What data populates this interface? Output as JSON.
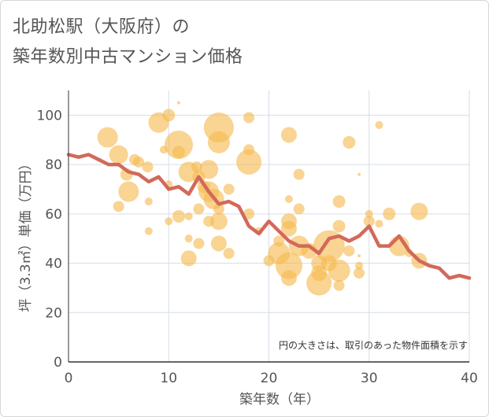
{
  "title_line1": "北助松駅（大阪府）の",
  "title_line2": "築年数別中古マンション価格",
  "chart_data": {
    "type": "scatter",
    "xlabel": "築年数（年）",
    "ylabel": "坪（3.3㎡）単価（万円）",
    "xlim": [
      0,
      40
    ],
    "ylim": [
      0,
      110
    ],
    "xticks": [
      "0",
      "10",
      "20",
      "30",
      "40"
    ],
    "yticks": [
      "0",
      "20",
      "40",
      "60",
      "80",
      "100"
    ],
    "grid": true,
    "annotation": "円の大きさは、取引のあった物件面積を示す",
    "colors": {
      "bubble": "#f5b94f",
      "line": "#d2695a",
      "grid": "#d6dee8"
    },
    "line_series": {
      "x": [
        0,
        1,
        2,
        3,
        4,
        5,
        6,
        7,
        8,
        9,
        10,
        11,
        12,
        13,
        14,
        15,
        16,
        17,
        18,
        19,
        20,
        21,
        22,
        23,
        24,
        25,
        26,
        27,
        28,
        29,
        30,
        31,
        32,
        33,
        34,
        35,
        36,
        37,
        38,
        39,
        40
      ],
      "y": [
        84,
        83,
        84,
        82,
        80,
        80,
        77,
        76,
        73,
        75,
        70,
        71,
        68,
        75,
        69,
        64,
        65,
        63,
        55,
        52,
        57,
        53,
        49,
        47,
        47,
        44,
        50,
        51,
        49,
        51,
        55,
        47,
        47,
        51,
        45,
        41,
        39,
        38,
        34,
        35,
        34
      ]
    },
    "bubbles": [
      {
        "x": 3.9,
        "y": 91,
        "r": 13
      },
      {
        "x": 5,
        "y": 84,
        "r": 12
      },
      {
        "x": 5.8,
        "y": 76,
        "r": 8
      },
      {
        "x": 6.6,
        "y": 82,
        "r": 7
      },
      {
        "x": 7,
        "y": 81,
        "r": 7
      },
      {
        "x": 6,
        "y": 69,
        "r": 13
      },
      {
        "x": 5,
        "y": 63,
        "r": 7
      },
      {
        "x": 7.9,
        "y": 79,
        "r": 7
      },
      {
        "x": 8,
        "y": 65,
        "r": 5
      },
      {
        "x": 8,
        "y": 53,
        "r": 5
      },
      {
        "x": 9,
        "y": 97,
        "r": 13
      },
      {
        "x": 10,
        "y": 100,
        "r": 8
      },
      {
        "x": 11,
        "y": 105,
        "r": 2
      },
      {
        "x": 11,
        "y": 88,
        "r": 18
      },
      {
        "x": 11,
        "y": 85,
        "r": 8
      },
      {
        "x": 9.5,
        "y": 86,
        "r": 5
      },
      {
        "x": 10,
        "y": 72,
        "r": 5
      },
      {
        "x": 11,
        "y": 59,
        "r": 8
      },
      {
        "x": 10,
        "y": 57,
        "r": 5
      },
      {
        "x": 12,
        "y": 77,
        "r": 13
      },
      {
        "x": 12.8,
        "y": 79,
        "r": 7
      },
      {
        "x": 13,
        "y": 75,
        "r": 8
      },
      {
        "x": 13.5,
        "y": 71,
        "r": 8
      },
      {
        "x": 14,
        "y": 78,
        "r": 12
      },
      {
        "x": 14,
        "y": 69,
        "r": 13
      },
      {
        "x": 14.5,
        "y": 66,
        "r": 13
      },
      {
        "x": 15,
        "y": 95,
        "r": 19
      },
      {
        "x": 15,
        "y": 89,
        "r": 14
      },
      {
        "x": 16,
        "y": 70,
        "r": 7
      },
      {
        "x": 15,
        "y": 62,
        "r": 7
      },
      {
        "x": 15,
        "y": 57,
        "r": 11
      },
      {
        "x": 14,
        "y": 57,
        "r": 7
      },
      {
        "x": 13,
        "y": 62,
        "r": 7
      },
      {
        "x": 12,
        "y": 59,
        "r": 5
      },
      {
        "x": 12,
        "y": 50,
        "r": 5
      },
      {
        "x": 13,
        "y": 48,
        "r": 7
      },
      {
        "x": 15,
        "y": 48,
        "r": 10
      },
      {
        "x": 16,
        "y": 44,
        "r": 7
      },
      {
        "x": 12,
        "y": 42,
        "r": 10
      },
      {
        "x": 18,
        "y": 99,
        "r": 7
      },
      {
        "x": 18,
        "y": 86,
        "r": 7
      },
      {
        "x": 18,
        "y": 81,
        "r": 16
      },
      {
        "x": 18,
        "y": 60,
        "r": 7
      },
      {
        "x": 19,
        "y": 53,
        "r": 5
      },
      {
        "x": 22,
        "y": 92,
        "r": 10
      },
      {
        "x": 23,
        "y": 76,
        "r": 7
      },
      {
        "x": 22,
        "y": 66,
        "r": 5
      },
      {
        "x": 23,
        "y": 62,
        "r": 7
      },
      {
        "x": 22,
        "y": 57,
        "r": 10
      },
      {
        "x": 22,
        "y": 54,
        "r": 10
      },
      {
        "x": 21,
        "y": 49,
        "r": 7
      },
      {
        "x": 20,
        "y": 41,
        "r": 7
      },
      {
        "x": 21,
        "y": 44,
        "r": 14
      },
      {
        "x": 22,
        "y": 39,
        "r": 17
      },
      {
        "x": 22,
        "y": 34,
        "r": 10
      },
      {
        "x": 23,
        "y": 47,
        "r": 13
      },
      {
        "x": 24,
        "y": 45,
        "r": 10
      },
      {
        "x": 25,
        "y": 40,
        "r": 10
      },
      {
        "x": 25,
        "y": 36,
        "r": 10
      },
      {
        "x": 25,
        "y": 32,
        "r": 16
      },
      {
        "x": 26,
        "y": 47,
        "r": 20
      },
      {
        "x": 26,
        "y": 40,
        "r": 10
      },
      {
        "x": 27,
        "y": 55,
        "r": 8
      },
      {
        "x": 27,
        "y": 65,
        "r": 8
      },
      {
        "x": 28,
        "y": 89,
        "r": 8
      },
      {
        "x": 27,
        "y": 37,
        "r": 14
      },
      {
        "x": 27,
        "y": 31,
        "r": 7
      },
      {
        "x": 28,
        "y": 45,
        "r": 7
      },
      {
        "x": 29,
        "y": 76,
        "r": 2
      },
      {
        "x": 29,
        "y": 43,
        "r": 2
      },
      {
        "x": 29,
        "y": 39,
        "r": 5
      },
      {
        "x": 29,
        "y": 36,
        "r": 7
      },
      {
        "x": 30,
        "y": 60,
        "r": 5
      },
      {
        "x": 30,
        "y": 57,
        "r": 7
      },
      {
        "x": 31,
        "y": 96,
        "r": 5
      },
      {
        "x": 31,
        "y": 56,
        "r": 5
      },
      {
        "x": 32,
        "y": 60,
        "r": 8
      },
      {
        "x": 33,
        "y": 47,
        "r": 13
      },
      {
        "x": 35,
        "y": 61,
        "r": 11
      },
      {
        "x": 35,
        "y": 41,
        "r": 10
      },
      {
        "x": 34,
        "y": 44,
        "r": 5
      }
    ]
  }
}
